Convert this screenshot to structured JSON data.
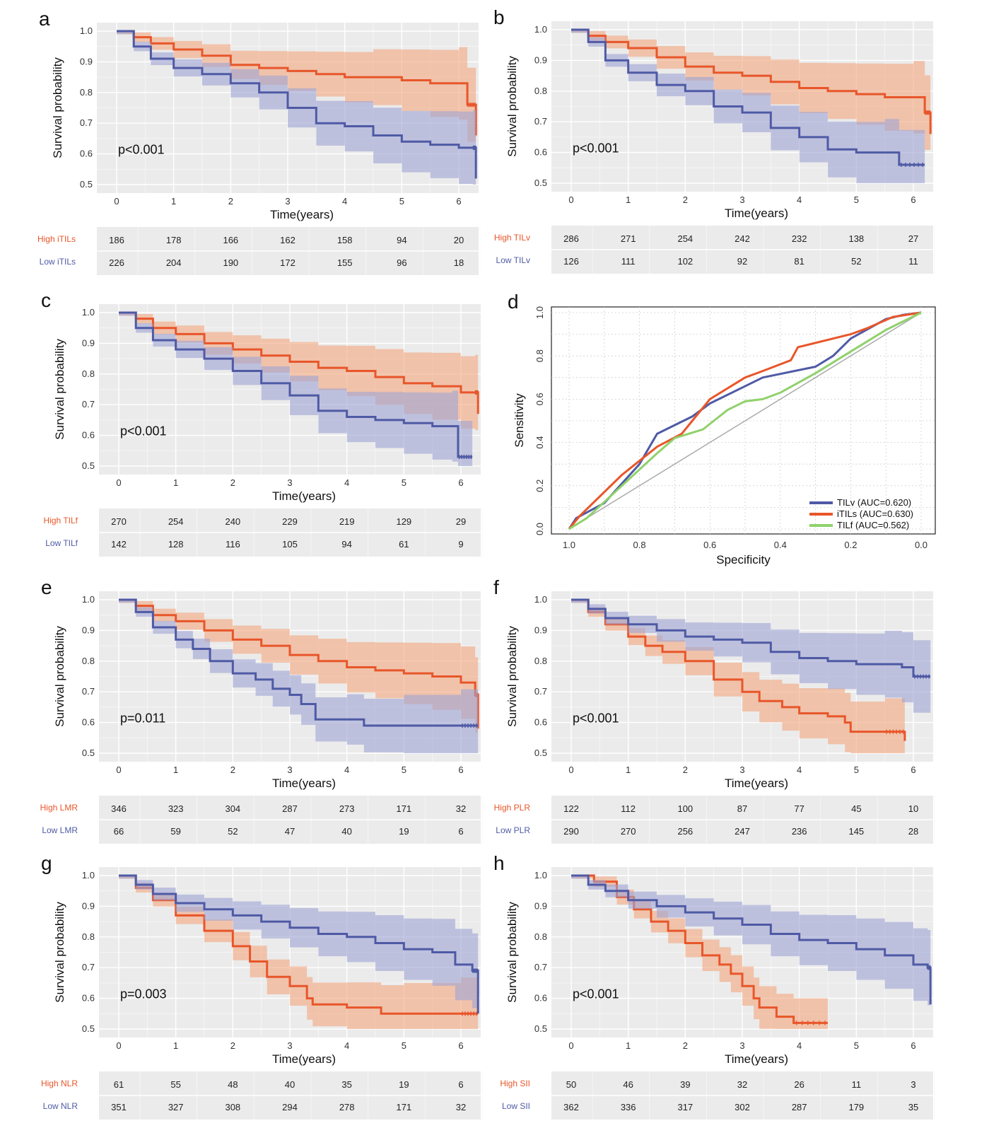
{
  "colors": {
    "high": "#e8562a",
    "low": "#4f5aa5",
    "high_band": "#f4a77e",
    "low_band": "#9ea3d3",
    "roc_green": "#8fd16a",
    "diagonal": "#aaaaaa"
  },
  "chart_data": [
    {
      "panel": "a",
      "type": "line",
      "xlabel": "Time(years)",
      "ylabel": "Survival probability",
      "ylim": [
        0.5,
        1.0
      ],
      "xticks": [
        "0",
        "1",
        "2",
        "3",
        "4",
        "5",
        "6"
      ],
      "yticks": [
        "0.5",
        "0.6",
        "0.7",
        "0.8",
        "0.9",
        "1.0"
      ],
      "pvalue": "p<0.001",
      "series": [
        {
          "name": "High iTILs",
          "risk": [
            "186",
            "178",
            "166",
            "162",
            "158",
            "94",
            "20"
          ],
          "x": [
            0,
            0.3,
            0.6,
            1,
            1.5,
            2,
            2.5,
            3,
            3.5,
            4,
            4.5,
            5,
            5.5,
            6,
            6.15,
            6.3
          ],
          "y": [
            1,
            0.98,
            0.96,
            0.94,
            0.92,
            0.89,
            0.88,
            0.87,
            0.86,
            0.85,
            0.85,
            0.84,
            0.83,
            0.83,
            0.76,
            0.66
          ]
        },
        {
          "name": "Low iTILs",
          "risk": [
            "226",
            "204",
            "190",
            "172",
            "155",
            "96",
            "18"
          ],
          "x": [
            0,
            0.3,
            0.6,
            1,
            1.5,
            2,
            2.5,
            3,
            3.5,
            4,
            4.5,
            5,
            5.5,
            6,
            6.25,
            6.3
          ],
          "y": [
            1,
            0.95,
            0.91,
            0.88,
            0.86,
            0.83,
            0.8,
            0.75,
            0.7,
            0.69,
            0.66,
            0.64,
            0.63,
            0.62,
            0.62,
            0.52
          ]
        }
      ]
    },
    {
      "panel": "b",
      "type": "line",
      "xlabel": "Time(years)",
      "ylabel": "Survival probability",
      "ylim": [
        0.5,
        1.0
      ],
      "xticks": [
        "0",
        "1",
        "2",
        "3",
        "4",
        "5",
        "6"
      ],
      "yticks": [
        "0.5",
        "0.6",
        "0.7",
        "0.8",
        "0.9",
        "1.0"
      ],
      "pvalue": "p<0.001",
      "series": [
        {
          "name": "High TILv",
          "risk": [
            "286",
            "271",
            "254",
            "242",
            "232",
            "138",
            "27"
          ],
          "x": [
            0,
            0.3,
            0.6,
            1,
            1.5,
            2,
            2.5,
            3,
            3.5,
            4,
            4.5,
            5,
            5.5,
            6,
            6.2,
            6.3
          ],
          "y": [
            1,
            0.98,
            0.96,
            0.94,
            0.91,
            0.88,
            0.86,
            0.85,
            0.83,
            0.81,
            0.8,
            0.79,
            0.78,
            0.78,
            0.73,
            0.66
          ]
        },
        {
          "name": "Low TILv",
          "risk": [
            "126",
            "111",
            "102",
            "92",
            "81",
            "52",
            "11"
          ],
          "x": [
            0,
            0.3,
            0.6,
            1,
            1.5,
            2,
            2.5,
            3,
            3.5,
            4,
            4.5,
            5,
            5.5,
            5.75,
            6.2
          ],
          "y": [
            1,
            0.96,
            0.9,
            0.86,
            0.82,
            0.8,
            0.75,
            0.73,
            0.68,
            0.65,
            0.61,
            0.6,
            0.6,
            0.56,
            0.56
          ]
        }
      ]
    },
    {
      "panel": "c",
      "type": "line",
      "xlabel": "Time(years)",
      "ylabel": "Survival probability",
      "ylim": [
        0.5,
        1.0
      ],
      "xticks": [
        "0",
        "1",
        "2",
        "3",
        "4",
        "5",
        "6"
      ],
      "yticks": [
        "0.5",
        "0.6",
        "0.7",
        "0.8",
        "0.9",
        "1.0"
      ],
      "pvalue": "p<0.001",
      "series": [
        {
          "name": "High TILf",
          "risk": [
            "270",
            "254",
            "240",
            "229",
            "219",
            "129",
            "29"
          ],
          "x": [
            0,
            0.3,
            0.6,
            1,
            1.5,
            2,
            2.5,
            3,
            3.5,
            4,
            4.5,
            5,
            5.5,
            6,
            6.25,
            6.3
          ],
          "y": [
            1,
            0.98,
            0.95,
            0.93,
            0.9,
            0.88,
            0.86,
            0.84,
            0.82,
            0.81,
            0.79,
            0.77,
            0.76,
            0.74,
            0.74,
            0.67
          ]
        },
        {
          "name": "Low TILf",
          "risk": [
            "142",
            "128",
            "116",
            "105",
            "94",
            "61",
            "9"
          ],
          "x": [
            0,
            0.3,
            0.6,
            1,
            1.5,
            2,
            2.5,
            3,
            3.5,
            4,
            4.5,
            5,
            5.5,
            5.85,
            5.95,
            6.2
          ],
          "y": [
            1,
            0.95,
            0.91,
            0.88,
            0.85,
            0.81,
            0.77,
            0.73,
            0.68,
            0.66,
            0.65,
            0.64,
            0.63,
            0.63,
            0.53,
            0.53
          ]
        }
      ]
    },
    {
      "panel": "d",
      "type": "line",
      "xlabel": "Specificity",
      "ylabel": "Sensitivity",
      "xlim": [
        1.0,
        0.0
      ],
      "ylim": [
        0.0,
        1.0
      ],
      "xticks": [
        "1.0",
        "0.8",
        "0.6",
        "0.4",
        "0.2",
        "0.0"
      ],
      "yticks": [
        "0.0",
        "0.2",
        "0.4",
        "0.6",
        "0.8",
        "1.0"
      ],
      "series": [
        {
          "name": "TILv (AUC=0.620)",
          "x": [
            1,
            0.98,
            0.9,
            0.8,
            0.75,
            0.65,
            0.6,
            0.5,
            0.45,
            0.3,
            0.25,
            0.2,
            0.1,
            0.05,
            0
          ],
          "y": [
            0,
            0.05,
            0.12,
            0.3,
            0.44,
            0.52,
            0.58,
            0.66,
            0.7,
            0.75,
            0.8,
            0.88,
            0.97,
            0.99,
            1
          ]
        },
        {
          "name": "iTILs (AUC=0.630)",
          "x": [
            1,
            0.97,
            0.85,
            0.75,
            0.68,
            0.65,
            0.6,
            0.5,
            0.45,
            0.37,
            0.35,
            0.2,
            0.15,
            0.08,
            0
          ],
          "y": [
            0,
            0.06,
            0.25,
            0.38,
            0.44,
            0.5,
            0.6,
            0.7,
            0.73,
            0.78,
            0.84,
            0.9,
            0.93,
            0.98,
            1
          ]
        },
        {
          "name": "TILf (AUC=0.562)",
          "x": [
            1,
            0.95,
            0.85,
            0.75,
            0.7,
            0.62,
            0.55,
            0.5,
            0.45,
            0.4,
            0.3,
            0.2,
            0.1,
            0
          ],
          "y": [
            0,
            0.05,
            0.2,
            0.35,
            0.42,
            0.46,
            0.55,
            0.59,
            0.6,
            0.63,
            0.72,
            0.82,
            0.92,
            1
          ]
        }
      ]
    },
    {
      "panel": "e",
      "type": "line",
      "xlabel": "Time(years)",
      "ylabel": "Survival probability",
      "ylim": [
        0.5,
        1.0
      ],
      "xticks": [
        "0",
        "1",
        "2",
        "3",
        "4",
        "5",
        "6"
      ],
      "yticks": [
        "0.5",
        "0.6",
        "0.7",
        "0.8",
        "0.9",
        "1.0"
      ],
      "pvalue": "p=0.011",
      "series": [
        {
          "name": "High LMR",
          "risk": [
            "346",
            "323",
            "304",
            "287",
            "273",
            "171",
            "32"
          ],
          "x": [
            0,
            0.3,
            0.6,
            1,
            1.5,
            2,
            2.5,
            3,
            3.5,
            4,
            4.5,
            5,
            5.5,
            6,
            6.25,
            6.3
          ],
          "y": [
            1,
            0.98,
            0.95,
            0.93,
            0.9,
            0.87,
            0.85,
            0.82,
            0.8,
            0.78,
            0.77,
            0.76,
            0.75,
            0.73,
            0.69,
            0.58
          ]
        },
        {
          "name": "Low LMR",
          "risk": [
            "66",
            "59",
            "52",
            "47",
            "40",
            "19",
            "6"
          ],
          "x": [
            0,
            0.3,
            0.6,
            1,
            1.3,
            1.6,
            2,
            2.4,
            2.7,
            3,
            3.2,
            3.45,
            4,
            4.3,
            5,
            6,
            6.3
          ],
          "y": [
            1,
            0.96,
            0.91,
            0.87,
            0.84,
            0.8,
            0.76,
            0.74,
            0.71,
            0.69,
            0.66,
            0.61,
            0.61,
            0.59,
            0.59,
            0.59,
            0.59
          ]
        }
      ]
    },
    {
      "panel": "f",
      "type": "line",
      "xlabel": "Time(years)",
      "ylabel": "Survival probability",
      "ylim": [
        0.5,
        1.0
      ],
      "xticks": [
        "0",
        "1",
        "2",
        "3",
        "4",
        "5",
        "6"
      ],
      "yticks": [
        "0.5",
        "0.6",
        "0.7",
        "0.8",
        "0.9",
        "1.0"
      ],
      "pvalue": "p<0.001",
      "series": [
        {
          "name": "High PLR",
          "risk": [
            "122",
            "112",
            "100",
            "87",
            "77",
            "45",
            "10"
          ],
          "x": [
            0,
            0.3,
            0.6,
            1,
            1.3,
            1.6,
            2,
            2.5,
            3,
            3.3,
            3.7,
            4,
            4.5,
            4.8,
            4.9,
            5.5,
            5.85
          ],
          "y": [
            1,
            0.96,
            0.92,
            0.88,
            0.85,
            0.83,
            0.8,
            0.74,
            0.7,
            0.67,
            0.65,
            0.63,
            0.62,
            0.6,
            0.57,
            0.57,
            0.54
          ]
        },
        {
          "name": "Low PLR",
          "risk": [
            "290",
            "270",
            "256",
            "247",
            "236",
            "145",
            "28"
          ],
          "x": [
            0,
            0.3,
            0.6,
            1,
            1.5,
            2,
            2.5,
            3,
            3.5,
            4,
            4.5,
            5,
            5.5,
            5.8,
            6,
            6.3
          ],
          "y": [
            1,
            0.97,
            0.94,
            0.92,
            0.9,
            0.88,
            0.87,
            0.86,
            0.83,
            0.81,
            0.8,
            0.79,
            0.79,
            0.78,
            0.75,
            0.75
          ]
        }
      ]
    },
    {
      "panel": "g",
      "type": "line",
      "xlabel": "Time(years)",
      "ylabel": "Survival probability",
      "ylim": [
        0.5,
        1.0
      ],
      "xticks": [
        "0",
        "1",
        "2",
        "3",
        "4",
        "5",
        "6"
      ],
      "yticks": [
        "0.5",
        "0.6",
        "0.7",
        "0.8",
        "0.9",
        "1.0"
      ],
      "pvalue": "p=0.003",
      "series": [
        {
          "name": "High NLR",
          "risk": [
            "61",
            "55",
            "48",
            "40",
            "35",
            "19",
            "6"
          ],
          "x": [
            0,
            0.3,
            0.6,
            1,
            1.5,
            2,
            2.3,
            2.6,
            3,
            3.3,
            3.4,
            4,
            4.6,
            5,
            6,
            6.3
          ],
          "y": [
            1,
            0.96,
            0.92,
            0.87,
            0.82,
            0.77,
            0.72,
            0.67,
            0.64,
            0.6,
            0.58,
            0.57,
            0.55,
            0.55,
            0.55,
            0.55
          ]
        },
        {
          "name": "Low NLR",
          "risk": [
            "351",
            "327",
            "308",
            "294",
            "278",
            "171",
            "32"
          ],
          "x": [
            0,
            0.3,
            0.6,
            1,
            1.5,
            2,
            2.5,
            3,
            3.5,
            4,
            4.5,
            5,
            5.5,
            5.9,
            6.2,
            6.3
          ],
          "y": [
            1,
            0.97,
            0.94,
            0.91,
            0.89,
            0.87,
            0.85,
            0.83,
            0.81,
            0.8,
            0.78,
            0.76,
            0.75,
            0.71,
            0.69,
            0.55
          ]
        }
      ]
    },
    {
      "panel": "h",
      "type": "line",
      "xlabel": "Time(years)",
      "ylabel": "Survival probability",
      "ylim": [
        0.5,
        1.0
      ],
      "xticks": [
        "0",
        "1",
        "2",
        "3",
        "4",
        "5",
        "6"
      ],
      "yticks": [
        "0.5",
        "0.6",
        "0.7",
        "0.8",
        "0.9",
        "1.0"
      ],
      "pvalue": "p<0.001",
      "series": [
        {
          "name": "High SII",
          "risk": [
            "50",
            "46",
            "39",
            "32",
            "26",
            "11",
            "3"
          ],
          "x": [
            0,
            0.4,
            0.8,
            1.1,
            1.4,
            1.7,
            2,
            2.3,
            2.6,
            2.8,
            3,
            3.2,
            3.3,
            3.6,
            3.9,
            4.5
          ],
          "y": [
            1,
            0.98,
            0.93,
            0.89,
            0.85,
            0.82,
            0.78,
            0.74,
            0.71,
            0.68,
            0.64,
            0.6,
            0.57,
            0.54,
            0.52,
            0.52
          ]
        },
        {
          "name": "Low SII",
          "risk": [
            "362",
            "336",
            "317",
            "302",
            "287",
            "179",
            "35"
          ],
          "x": [
            0,
            0.3,
            0.6,
            1,
            1.5,
            2,
            2.5,
            3,
            3.5,
            4,
            4.5,
            5,
            5.5,
            6,
            6.25,
            6.3
          ],
          "y": [
            1,
            0.97,
            0.95,
            0.92,
            0.9,
            0.88,
            0.86,
            0.84,
            0.81,
            0.79,
            0.78,
            0.76,
            0.74,
            0.71,
            0.7,
            0.58
          ]
        }
      ]
    }
  ]
}
